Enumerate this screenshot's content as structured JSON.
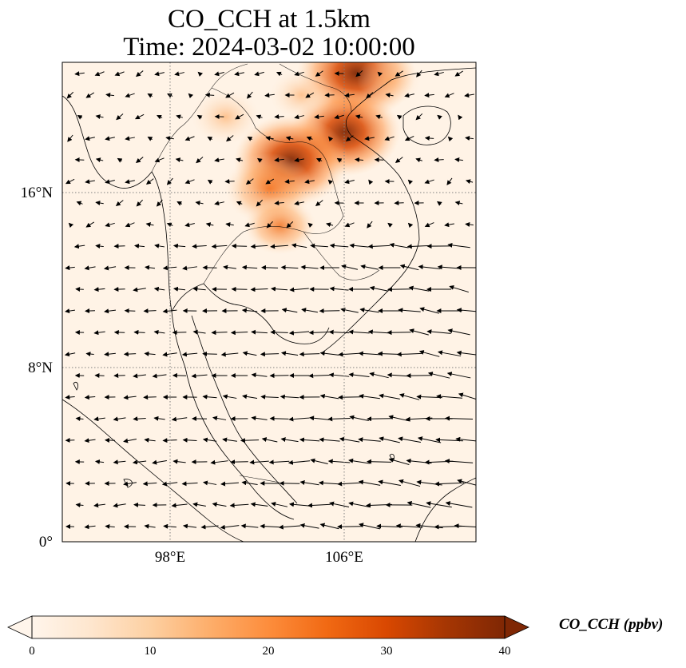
{
  "title": {
    "line1": "CO_CCH at 1.5km",
    "line2": "Time: 2024-03-02 10:00:00"
  },
  "map": {
    "region": "Southeast Asia (Mainland & Maritime)",
    "extent_lon": [
      93,
      112
    ],
    "extent_lat": [
      0,
      22
    ],
    "gridlines": {
      "lons": [
        98,
        106
      ],
      "lats": [
        8,
        16
      ],
      "style": "dotted-gray"
    },
    "lat_ticks": [
      {
        "value": 0,
        "label": "0°"
      },
      {
        "value": 8,
        "label": "8°N"
      },
      {
        "value": 16,
        "label": "16°N"
      }
    ],
    "lon_ticks": [
      {
        "value": 98,
        "label": "98°E"
      },
      {
        "value": 106,
        "label": "106°E"
      }
    ],
    "field": "CO_CCH",
    "hotspots": [
      {
        "lon": 106.5,
        "lat": 21.5,
        "value": 40
      },
      {
        "lon": 106.0,
        "lat": 18.8,
        "value": 36
      },
      {
        "lon": 103.5,
        "lat": 17.5,
        "value": 38
      },
      {
        "lon": 102.5,
        "lat": 16.2,
        "value": 26
      },
      {
        "lon": 103.0,
        "lat": 14.5,
        "value": 18
      },
      {
        "lon": 100.5,
        "lat": 19.5,
        "value": 16
      },
      {
        "lon": 104.0,
        "lat": 20.5,
        "value": 14
      },
      {
        "lon": 108.0,
        "lat": 21.2,
        "value": 14
      }
    ],
    "wind_pattern": "northeasterly monsoon flow over South China Sea turning westerly over Gulf of Thailand"
  },
  "colorbar": {
    "label": "CO_CCH (ppbv)",
    "colormap": [
      "#fff5eb",
      "#fee6ce",
      "#fdd0a2",
      "#fdae6b",
      "#fd8d3c",
      "#f16913",
      "#d94801",
      "#a63603",
      "#7f2704"
    ],
    "range": [
      0,
      40
    ],
    "ticks": [
      {
        "value": 0,
        "label": "0"
      },
      {
        "value": 10,
        "label": "10"
      },
      {
        "value": 20,
        "label": "20"
      },
      {
        "value": 30,
        "label": "30"
      },
      {
        "value": 40,
        "label": "40"
      }
    ],
    "extend": "both"
  }
}
